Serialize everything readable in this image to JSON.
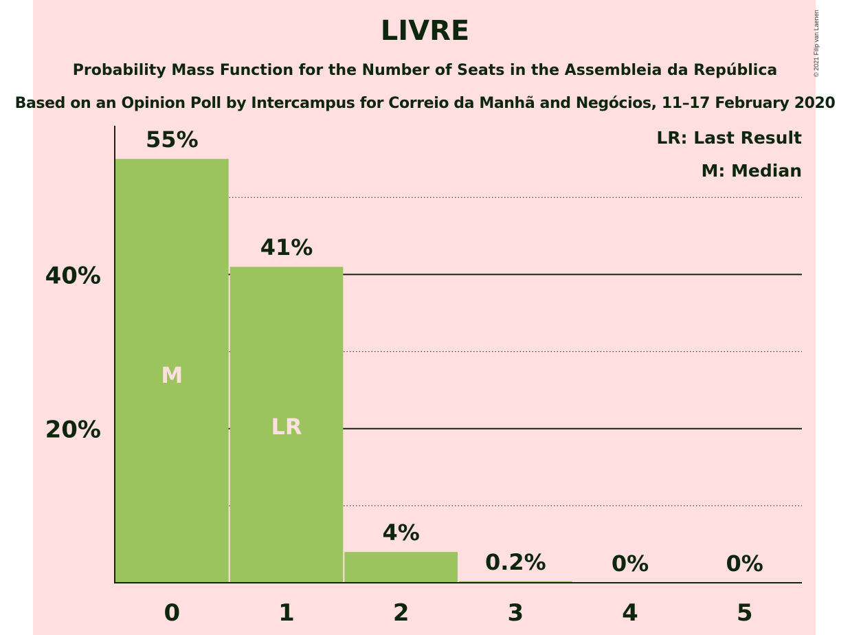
{
  "header": {
    "title": "LIVRE",
    "subtitle": "Probability Mass Function for the Number of Seats in the Assembleia da República",
    "subtitle2": "Based on an Opinion Poll by Intercampus for Correio da Manhã and Negócios, 11–17 February 2020",
    "copyright": "© 2021 Filip van Laenen"
  },
  "colors": {
    "background": "#ffdfe0",
    "bar": "#9bc45f",
    "text": "#0d260d",
    "in_bar_label": "#ffdfe0"
  },
  "chart_data": {
    "type": "bar",
    "categories": [
      "0",
      "1",
      "2",
      "3",
      "4",
      "5"
    ],
    "values": [
      55,
      41,
      4,
      0.2,
      0,
      0
    ],
    "value_labels": [
      "55%",
      "41%",
      "4%",
      "0.2%",
      "0%",
      "0%"
    ],
    "bar_markers": [
      "M",
      "LR",
      "",
      "",
      "",
      ""
    ],
    "yticks": [
      {
        "value": 20,
        "label": "20%"
      },
      {
        "value": 40,
        "label": "40%"
      }
    ],
    "minor_gridlines": [
      10,
      30,
      50
    ],
    "ylim": [
      0,
      59.3
    ],
    "grid": true,
    "legend": [
      "LR: Last Result",
      "M: Median"
    ],
    "legend_position": "top-right",
    "xlabel": "",
    "ylabel": ""
  }
}
